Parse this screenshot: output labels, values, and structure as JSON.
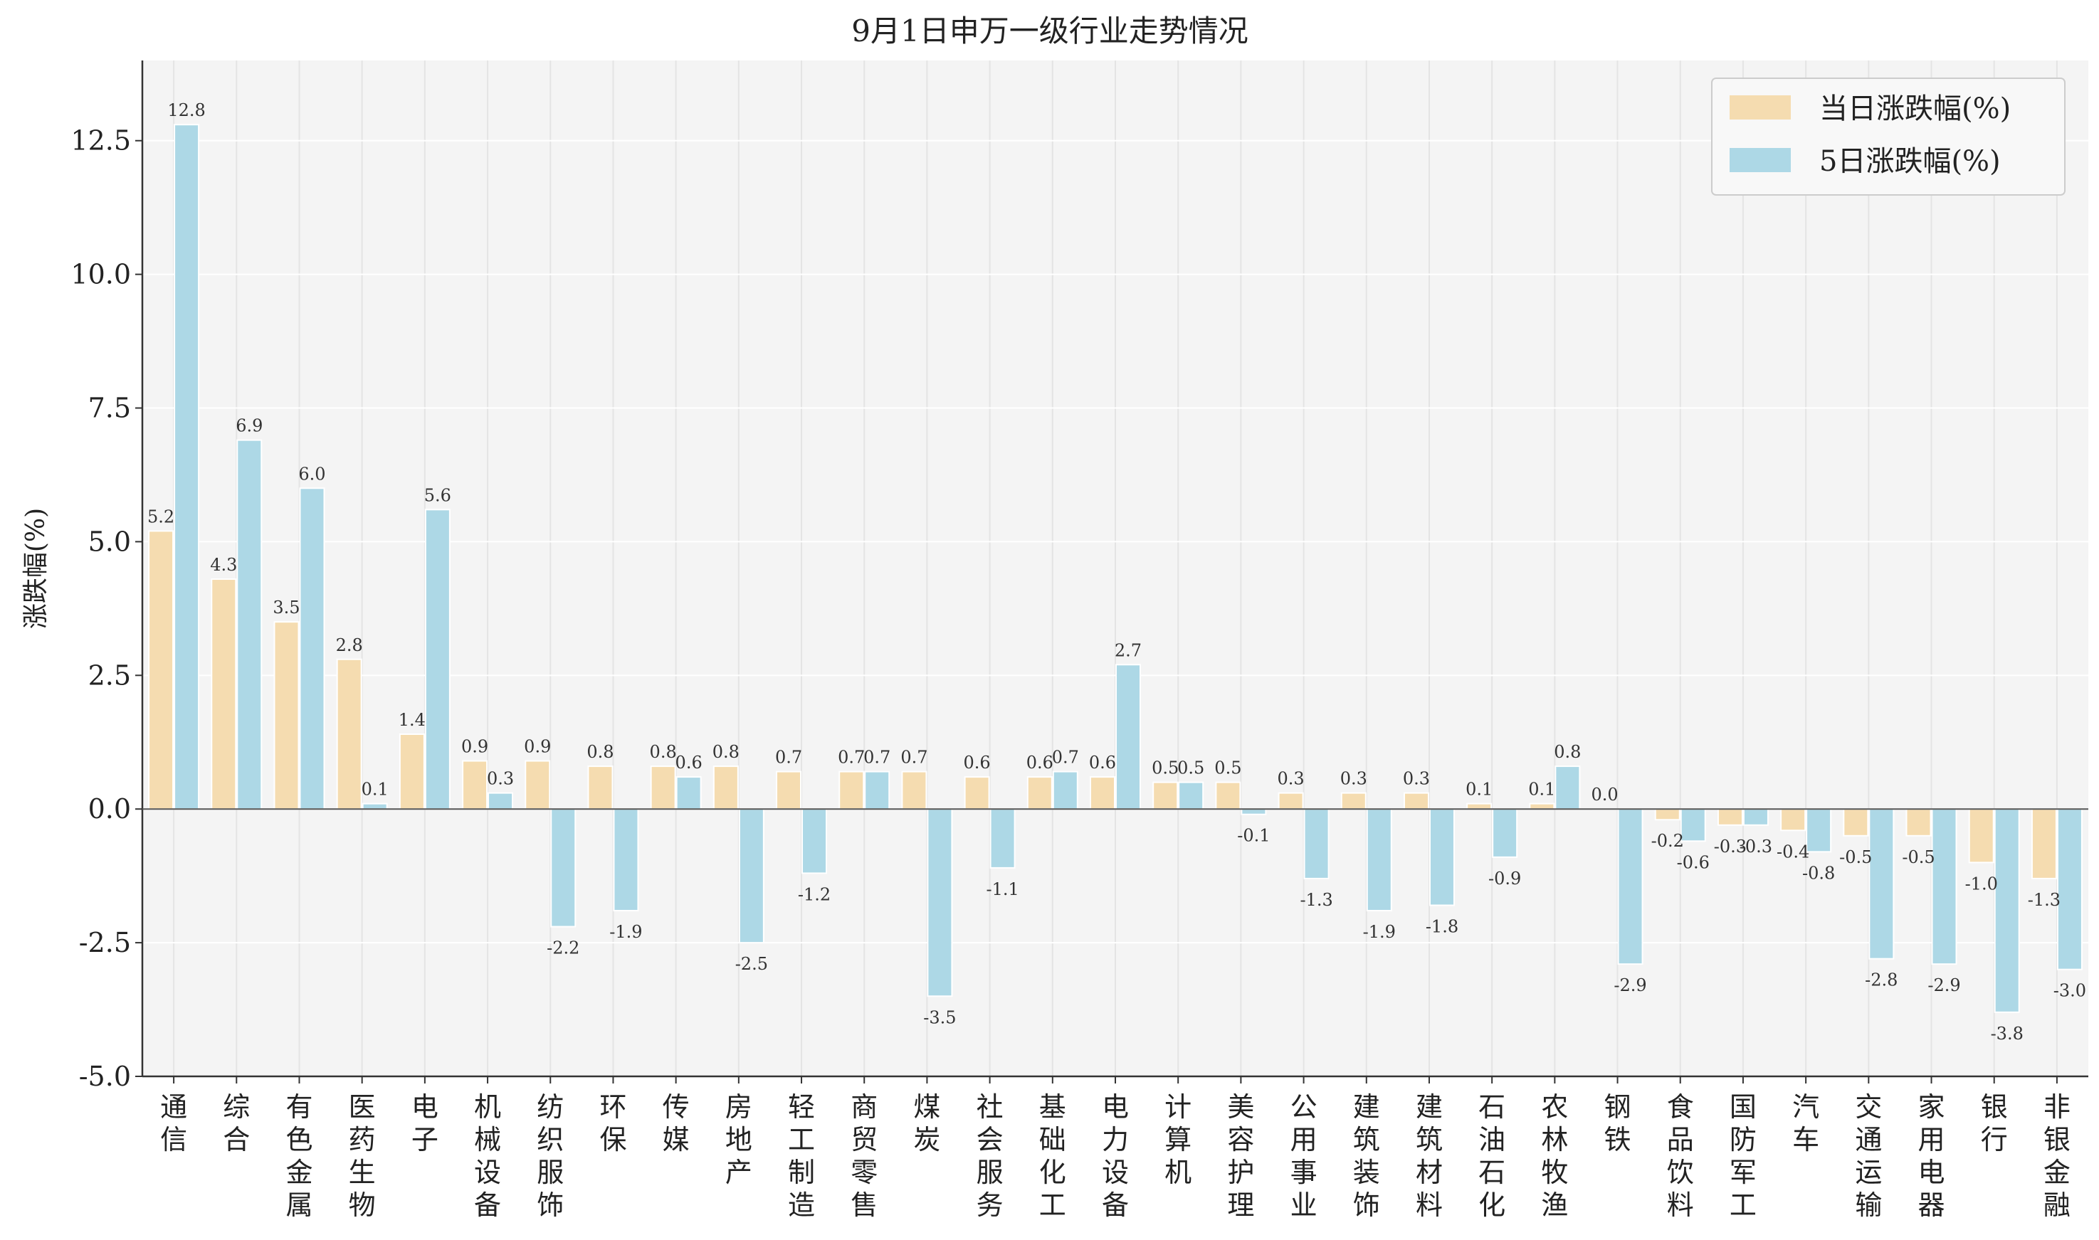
{
  "chart_data": {
    "type": "bar",
    "title": "9月1日申万一级行业走势情况",
    "xlabel": "",
    "ylabel": "涨跌幅(%)",
    "ylim": [
      -5.0,
      14.0
    ],
    "yticks": [
      "-5.0",
      "-2.5",
      "0.0",
      "2.5",
      "5.0",
      "7.5",
      "10.0",
      "12.5"
    ],
    "grid": true,
    "legend_position": "top-right",
    "categories": [
      "通信",
      "综合",
      "有色金属",
      "医药生物",
      "电子",
      "机械设备",
      "纺织服饰",
      "环保",
      "传媒",
      "房地产",
      "轻工制造",
      "商贸零售",
      "煤炭",
      "社会服务",
      "基础化工",
      "电力设备",
      "计算机",
      "美容护理",
      "公用事业",
      "建筑装饰",
      "建筑材料",
      "石油石化",
      "农林牧渔",
      "钢铁",
      "食品饮料",
      "国防军工",
      "汽车",
      "交通运输",
      "家用电器",
      "银行",
      "非银金融"
    ],
    "series": [
      {
        "name": "当日涨跌幅(%)",
        "color": "#f5dcb0",
        "values": [
          5.2,
          4.3,
          3.5,
          2.8,
          1.4,
          0.9,
          0.9,
          0.8,
          0.8,
          0.8,
          0.7,
          0.7,
          0.7,
          0.6,
          0.6,
          0.6,
          0.5,
          0.5,
          0.3,
          0.3,
          0.3,
          0.1,
          0.1,
          0.0,
          -0.2,
          -0.3,
          -0.4,
          -0.5,
          -0.5,
          -1.0,
          -1.3
        ],
        "labels": [
          "5.2",
          "4.3",
          "3.5",
          "2.8",
          "1.4",
          "0.9",
          "0.9",
          "0.8",
          "0.8",
          "0.8",
          "0.7",
          "0.7",
          "0.7",
          "0.6",
          "0.6",
          "0.6",
          "0.5",
          "0.5",
          "0.3",
          "0.3",
          "0.3",
          "0.1",
          "0.1",
          "0.0",
          "-0.2",
          "-0.3",
          "-0.4",
          "-0.5",
          "-0.5",
          "-1.0",
          "-1.3"
        ]
      },
      {
        "name": "5日涨跌幅(%)",
        "color": "#add8e6",
        "values": [
          12.8,
          6.9,
          6.0,
          0.1,
          5.6,
          0.3,
          -2.2,
          -1.9,
          0.6,
          -2.5,
          -1.2,
          0.7,
          -3.5,
          -1.1,
          0.7,
          2.7,
          0.5,
          -0.1,
          -1.3,
          -1.9,
          -1.8,
          -0.9,
          0.8,
          -2.9,
          -0.6,
          -0.3,
          -0.8,
          -2.8,
          -2.9,
          -3.8,
          -3.0
        ],
        "labels": [
          "12.8",
          "6.9",
          "6.0",
          "0.1",
          "5.6",
          "0.3",
          "-2.2",
          "-1.9",
          "0.6",
          "-2.5",
          "-1.2",
          "0.7",
          "-3.5",
          "-1.1",
          "0.7",
          "2.7",
          "0.5",
          "-0.1",
          "-1.3",
          "-1.9",
          "-1.8",
          "-0.9",
          "0.8",
          "-2.9",
          "-0.6",
          "-0.3",
          "-0.8",
          "-2.8",
          "-2.9",
          "-3.8",
          "-3.0"
        ]
      }
    ],
    "colors": {
      "background": "#f4f4f4",
      "grid": "#ffffff",
      "axis": "#333333",
      "edge": "#ffffff"
    }
  }
}
